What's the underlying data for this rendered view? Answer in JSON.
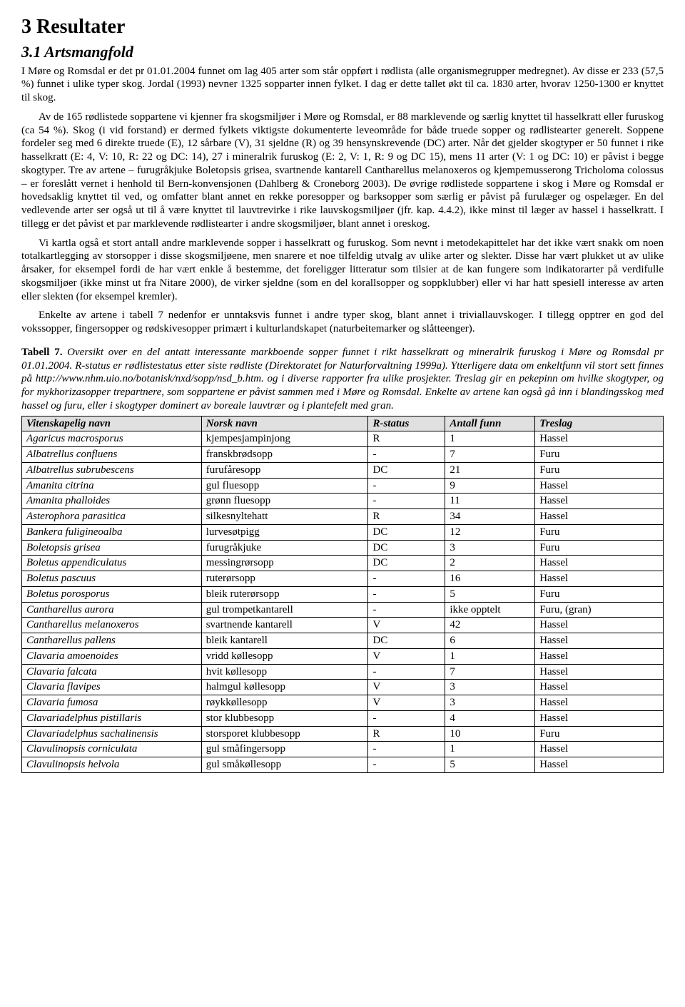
{
  "heading1": "3   Resultater",
  "heading2": "3.1   Artsmangfold",
  "para1": "I Møre og Romsdal er det pr 01.01.2004 funnet om lag 405 arter som står oppført i rødlista (alle organismegrupper medregnet). Av disse er 233 (57,5 %) funnet i ulike typer skog. Jordal (1993) nevner 1325 sopparter innen fylket. I dag er dette tallet økt til ca. 1830 arter, hvorav 1250-1300 er knyttet til skog.",
  "para2": "Av de 165 rødlistede soppartene vi kjenner fra skogsmiljøer i Møre og Romsdal, er 88 marklevende og særlig knyttet til hasselkratt eller furuskog (ca 54 %). Skog (i vid forstand) er dermed fylkets viktigste dokumenterte leveområde for både truede sopper og rødlistearter generelt. Soppene fordeler seg med 6 direkte truede (E), 12 sårbare (V), 31 sjeldne (R) og 39 hensynskrevende (DC) arter. Når det gjelder skogtyper er 50 funnet i rike hasselkratt (E: 4, V: 10, R: 22 og DC: 14), 27 i mineralrik furuskog (E: 2, V: 1, R: 9 og DC 15), mens 11 arter (V: 1 og DC: 10) er påvist i begge skogtyper. Tre av artene – furugråkjuke Boletopsis grisea, svartnende kantarell Cantharellus melanoxeros og kjempemusserong Tricholoma colossus – er foreslått vernet i henhold til Bern-konvensjonen (Dahlberg & Croneborg 2003). De øvrige rødlistede soppartene i skog i Møre og Romsdal er hovedsaklig knyttet til ved, og omfatter blant annet en rekke poresopper og barksopper som særlig er påvist på furulæger og ospelæger. En del vedlevende arter ser også ut til å være knyttet til lauvtrevirke i rike lauvskogsmiljøer (jfr. kap. 4.4.2), ikke minst til læger av hassel i hasselkratt. I tillegg er det påvist et par marklevende rødlistearter i andre skogsmiljøer, blant annet i oreskog.",
  "para3": "Vi kartla også et stort antall andre marklevende sopper i hasselkratt og furuskog. Som nevnt i metodekapittelet har det ikke vært snakk om noen totalkartlegging av storsopper i disse skogsmiljøene, men snarere et noe tilfeldig utvalg av ulike arter og slekter. Disse har vært plukket ut av ulike årsaker, for eksempel fordi de har vært enkle å bestemme, det foreligger litteratur som tilsier at de kan fungere som indikatorarter på verdifulle skogsmiljøer (ikke minst ut fra Nitare 2000), de virker sjeldne (som en del korallsopper og soppklubber) eller vi har hatt spesiell interesse av arten eller slekten (for eksempel kremler).",
  "para4": "Enkelte av artene i tabell 7 nedenfor er unntaksvis funnet i andre typer skog, blant annet i triviallauvskoger. I tillegg opptrer en god del vokssopper, fingersopper og rødskivesopper primært i kulturlandskapet (naturbeitemarker og slåtteenger).",
  "caption_bold": "Tabell 7.",
  "caption_rest": " Oversikt over en del antatt interessante markboende sopper funnet i rikt hasselkratt og mineralrik furuskog i Møre og Romsdal pr 01.01.2004. R-status er rødlistestatus etter siste rødliste (Direktoratet for Naturforvaltning 1999a). Ytterligere data om enkeltfunn vil stort sett finnes på http://www.nhm.uio.no/botanisk/nxd/sopp/nsd_b.htm. og i diverse rapporter fra ulike prosjekter. Treslag gir en pekepinn om hvilke skogtyper, og for mykhorizasopper trepartnere, som soppartene er påvist sammen med i Møre og Romsdal. Enkelte av artene kan også gå inn i blandingsskog med hassel og furu, eller i skogtyper dominert av boreale lauvtrær og i plantefelt med gran.",
  "table": {
    "columns": [
      "Vitenskapelig navn",
      "Norsk navn",
      "R-status",
      "Antall funn",
      "Treslag"
    ],
    "col_widths": [
      "28%",
      "26%",
      "12%",
      "14%",
      "20%"
    ],
    "header_bg": "#e0e0e0",
    "border_color": "#000000",
    "rows": [
      [
        "Agaricus macrosporus",
        "kjempesjampinjong",
        "R",
        "1",
        "Hassel"
      ],
      [
        "Albatrellus confluens",
        "franskbrødsopp",
        "-",
        "7",
        "Furu"
      ],
      [
        "Albatrellus subrubescens",
        "furufåresopp",
        "DC",
        "21",
        "Furu"
      ],
      [
        "Amanita citrina",
        "gul fluesopp",
        "-",
        "9",
        "Hassel"
      ],
      [
        "Amanita phalloides",
        "grønn fluesopp",
        "-",
        "11",
        "Hassel"
      ],
      [
        "Asterophora parasitica",
        "silkesnyltehatt",
        "R",
        "34",
        "Hassel"
      ],
      [
        "Bankera fuligineoalba",
        "lurvesøtpigg",
        "DC",
        "12",
        "Furu"
      ],
      [
        "Boletopsis grisea",
        "furugråkjuke",
        "DC",
        "3",
        "Furu"
      ],
      [
        "Boletus appendiculatus",
        "messingrørsopp",
        "DC",
        "2",
        "Hassel"
      ],
      [
        "Boletus pascuus",
        "ruterørsopp",
        "-",
        "16",
        "Hassel"
      ],
      [
        "Boletus porosporus",
        "bleik ruterørsopp",
        "-",
        "5",
        "Furu"
      ],
      [
        "Cantharellus aurora",
        "gul trompetkantarell",
        "-",
        "ikke opptelt",
        "Furu, (gran)"
      ],
      [
        "Cantharellus melanoxeros",
        "svartnende kantarell",
        "V",
        "42",
        "Hassel"
      ],
      [
        "Cantharellus pallens",
        "bleik kantarell",
        "DC",
        "6",
        "Hassel"
      ],
      [
        "Clavaria amoenoides",
        "vridd køllesopp",
        "V",
        "1",
        "Hassel"
      ],
      [
        "Clavaria falcata",
        "hvit køllesopp",
        "-",
        "7",
        "Hassel"
      ],
      [
        "Clavaria flavipes",
        "halmgul køllesopp",
        "V",
        "3",
        "Hassel"
      ],
      [
        "Clavaria fumosa",
        "røykkøllesopp",
        "V",
        "3",
        "Hassel"
      ],
      [
        "Clavariadelphus pistillaris",
        "stor klubbesopp",
        "-",
        "4",
        "Hassel"
      ],
      [
        "Clavariadelphus sachalinensis",
        "storsporet klubbesopp",
        "R",
        "10",
        "Furu"
      ],
      [
        "Clavulinopsis corniculata",
        "gul småfingersopp",
        "-",
        "1",
        "Hassel"
      ],
      [
        "Clavulinopsis helvola",
        "gul småkøllesopp",
        "-",
        "5",
        "Hassel"
      ]
    ]
  }
}
